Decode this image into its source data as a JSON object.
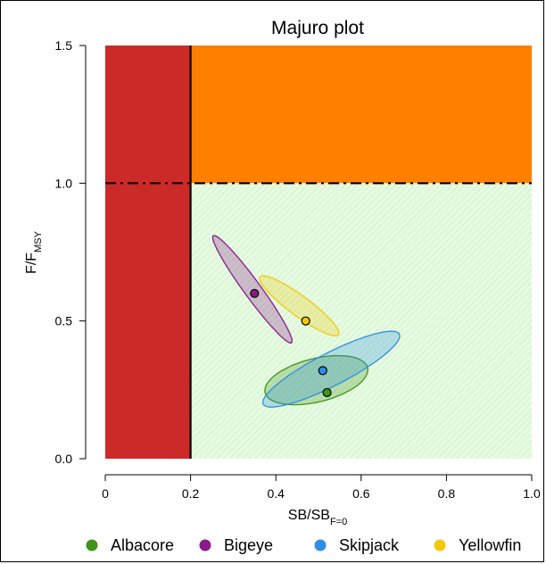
{
  "chart_data": {
    "type": "scatter",
    "title": "Majuro plot",
    "xlabel": {
      "main": "SB/SB",
      "sub": "F=0"
    },
    "ylabel": {
      "main": "F/F",
      "sub": "MSY"
    },
    "xlim": [
      0,
      1.0
    ],
    "ylim": [
      0,
      1.5
    ],
    "x_ticks": [
      "0",
      "0.2",
      "0.4",
      "0.6",
      "0.8",
      "1.0"
    ],
    "y_ticks": [
      "0.0",
      "0.5",
      "1.0",
      "1.5"
    ],
    "reference_lines": {
      "limit_reference_point_x": 0.2,
      "f_msy_y": 1.0
    },
    "zones": [
      {
        "name": "red-zone",
        "x": [
          0,
          0.2
        ],
        "y": [
          0,
          1.5
        ],
        "color": "#cc2a29"
      },
      {
        "name": "orange-zone",
        "x": [
          0.2,
          1.0
        ],
        "y": [
          1.0,
          1.5
        ],
        "color": "#ff8000"
      },
      {
        "name": "green-zone",
        "x": [
          0.2,
          1.0
        ],
        "y": [
          0,
          1.0
        ],
        "color": "#e6fbe2"
      }
    ],
    "series": [
      {
        "name": "Albacore",
        "color": "#3f9418",
        "x": 0.52,
        "y": 0.24,
        "ellipse": {
          "center": [
            0.495,
            0.285
          ],
          "semi_major": 0.13,
          "semi_minor": 0.075,
          "angle": 27
        }
      },
      {
        "name": "Bigeye",
        "color": "#8b1a8b",
        "x": 0.35,
        "y": 0.6,
        "ellipse": {
          "center": [
            0.345,
            0.615
          ],
          "semi_major": 0.215,
          "semi_minor": 0.022,
          "angle": -65
        }
      },
      {
        "name": "Skipjack",
        "color": "#2f8ee6",
        "x": 0.51,
        "y": 0.32,
        "ellipse": {
          "center": [
            0.53,
            0.325
          ],
          "semi_major": 0.205,
          "semi_minor": 0.052,
          "angle": 40
        }
      },
      {
        "name": "Yellowfin",
        "color": "#f2c80c",
        "x": 0.47,
        "y": 0.5,
        "ellipse": {
          "center": [
            0.455,
            0.555
          ],
          "semi_major": 0.14,
          "semi_minor": 0.03,
          "angle": -50
        }
      }
    ],
    "legend": {
      "placement": "bottom"
    }
  }
}
